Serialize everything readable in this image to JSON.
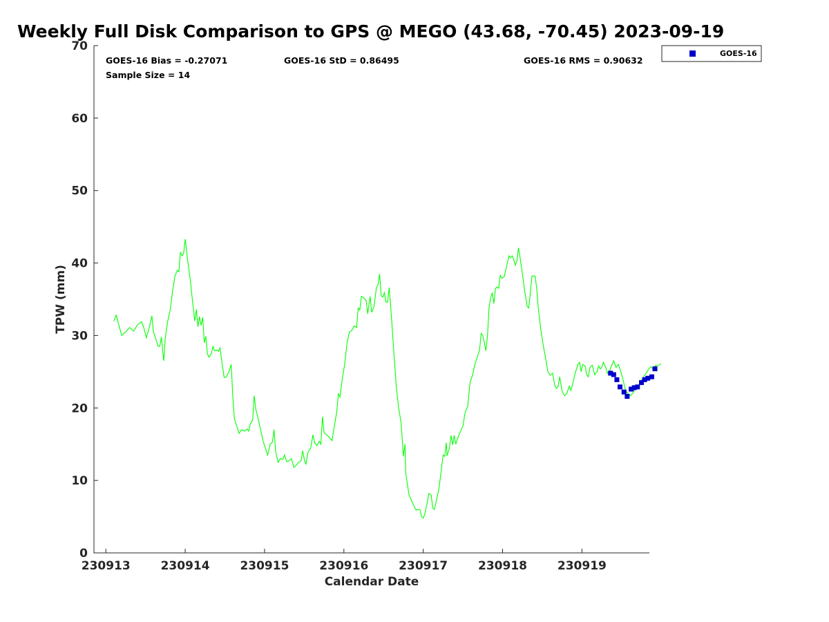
{
  "chart_data": {
    "type": "line",
    "title": "Weekly Full Disk Comparison to GPS @ MEGO (43.68, -70.45) 2023-09-19",
    "xlabel": "Calendar Date",
    "ylabel": "TPW (mm)",
    "xlim": [
      0,
      7.0
    ],
    "ylim": [
      0,
      70
    ],
    "x_tick_labels": [
      "230913",
      "230914",
      "230915",
      "230916",
      "230917",
      "230918",
      "230919"
    ],
    "y_ticks": [
      0,
      10,
      20,
      30,
      40,
      50,
      60,
      70
    ],
    "grid": false,
    "legend": {
      "placement": "top-right (outside plot)",
      "entries": [
        "GOES-16"
      ]
    },
    "stats": {
      "bias": "GOES-16 Bias = -0.27071",
      "std": "GOES-16 StD = 0.86495",
      "rms": "GOES-16 RMS = 0.90632",
      "sample_size": "Sample Size = 14"
    },
    "series": [
      {
        "color": "#00ff00",
        "style": "line",
        "points": [
          [
            0.1,
            32.0
          ],
          [
            0.13,
            32.8
          ],
          [
            0.16,
            31.6
          ],
          [
            0.2,
            30.0
          ],
          [
            0.25,
            30.5
          ],
          [
            0.3,
            31.1
          ],
          [
            0.35,
            30.6
          ],
          [
            0.4,
            31.5
          ],
          [
            0.45,
            31.9
          ],
          [
            0.48,
            31.0
          ],
          [
            0.51,
            29.7
          ],
          [
            0.55,
            31.2
          ],
          [
            0.58,
            32.7
          ],
          [
            0.6,
            30.5
          ],
          [
            0.63,
            29.5
          ],
          [
            0.66,
            28.5
          ],
          [
            0.68,
            28.5
          ],
          [
            0.7,
            29.8
          ],
          [
            0.72,
            27.5
          ],
          [
            0.73,
            26.5
          ],
          [
            0.75,
            29.8
          ],
          [
            0.78,
            32.0
          ],
          [
            0.81,
            33.5
          ],
          [
            0.84,
            36.0
          ],
          [
            0.87,
            38.2
          ],
          [
            0.9,
            39.0
          ],
          [
            0.92,
            38.8
          ],
          [
            0.94,
            41.5
          ],
          [
            0.96,
            41.0
          ],
          [
            0.98,
            41.3
          ],
          [
            1.0,
            43.3
          ],
          [
            1.03,
            40.5
          ],
          [
            1.06,
            38.0
          ],
          [
            1.09,
            35.0
          ],
          [
            1.12,
            32.0
          ],
          [
            1.14,
            33.6
          ],
          [
            1.16,
            31.2
          ],
          [
            1.18,
            32.6
          ],
          [
            1.2,
            31.4
          ],
          [
            1.22,
            32.5
          ],
          [
            1.24,
            29.0
          ],
          [
            1.26,
            29.9
          ],
          [
            1.28,
            27.5
          ],
          [
            1.3,
            27.0
          ],
          [
            1.33,
            27.5
          ],
          [
            1.35,
            28.5
          ],
          [
            1.37,
            27.9
          ],
          [
            1.4,
            28.0
          ],
          [
            1.42,
            27.8
          ],
          [
            1.44,
            28.3
          ],
          [
            1.46,
            26.5
          ],
          [
            1.49,
            24.2
          ],
          [
            1.52,
            24.3
          ],
          [
            1.55,
            25.0
          ],
          [
            1.58,
            26.0
          ],
          [
            1.6,
            21.5
          ],
          [
            1.62,
            18.5
          ],
          [
            1.65,
            17.5
          ],
          [
            1.68,
            16.5
          ],
          [
            1.71,
            17.0
          ],
          [
            1.75,
            16.8
          ],
          [
            1.78,
            17.1
          ],
          [
            1.8,
            16.8
          ],
          [
            1.82,
            17.8
          ],
          [
            1.85,
            18.3
          ],
          [
            1.87,
            21.7
          ],
          [
            1.89,
            19.8
          ],
          [
            1.92,
            18.5
          ],
          [
            1.95,
            17.0
          ],
          [
            1.98,
            15.5
          ],
          [
            2.01,
            14.5
          ],
          [
            2.04,
            13.5
          ],
          [
            2.07,
            15.0
          ],
          [
            2.1,
            15.3
          ],
          [
            2.12,
            17.0
          ],
          [
            2.14,
            14.0
          ],
          [
            2.17,
            12.5
          ],
          [
            2.2,
            13.0
          ],
          [
            2.23,
            12.9
          ],
          [
            2.25,
            13.5
          ],
          [
            2.28,
            12.6
          ],
          [
            2.31,
            12.7
          ],
          [
            2.34,
            13.0
          ],
          [
            2.37,
            11.8
          ],
          [
            2.4,
            12.1
          ],
          [
            2.43,
            12.5
          ],
          [
            2.46,
            12.7
          ],
          [
            2.48,
            14.1
          ],
          [
            2.5,
            12.9
          ],
          [
            2.52,
            12.2
          ],
          [
            2.55,
            14.0
          ],
          [
            2.58,
            14.4
          ],
          [
            2.61,
            16.3
          ],
          [
            2.63,
            15.2
          ],
          [
            2.66,
            14.8
          ],
          [
            2.69,
            15.4
          ],
          [
            2.71,
            15.0
          ],
          [
            2.73,
            18.8
          ],
          [
            2.75,
            16.6
          ],
          [
            2.78,
            16.3
          ],
          [
            2.81,
            16.0
          ],
          [
            2.85,
            15.5
          ],
          [
            2.88,
            17.5
          ],
          [
            2.91,
            19.5
          ],
          [
            2.93,
            22.0
          ],
          [
            2.95,
            21.5
          ],
          [
            2.98,
            24.0
          ],
          [
            3.01,
            26.0
          ],
          [
            3.04,
            29.0
          ],
          [
            3.07,
            30.5
          ],
          [
            3.1,
            30.7
          ],
          [
            3.13,
            31.3
          ],
          [
            3.16,
            31.1
          ],
          [
            3.18,
            33.8
          ],
          [
            3.2,
            33.5
          ],
          [
            3.22,
            35.4
          ],
          [
            3.25,
            35.2
          ],
          [
            3.28,
            34.8
          ],
          [
            3.3,
            33.0
          ],
          [
            3.33,
            35.4
          ],
          [
            3.35,
            33.2
          ],
          [
            3.38,
            34.0
          ],
          [
            3.41,
            36.6
          ],
          [
            3.43,
            37.0
          ],
          [
            3.45,
            38.5
          ],
          [
            3.47,
            35.5
          ],
          [
            3.49,
            35.3
          ],
          [
            3.51,
            35.9
          ],
          [
            3.53,
            34.6
          ],
          [
            3.55,
            34.6
          ],
          [
            3.57,
            36.6
          ],
          [
            3.6,
            32.5
          ],
          [
            3.63,
            27.5
          ],
          [
            3.66,
            23.0
          ],
          [
            3.69,
            20.0
          ],
          [
            3.72,
            18.0
          ],
          [
            3.74,
            15.0
          ],
          [
            3.75,
            13.3
          ],
          [
            3.77,
            15.0
          ],
          [
            3.78,
            11.0
          ],
          [
            3.8,
            9.5
          ],
          [
            3.82,
            8.0
          ],
          [
            3.85,
            7.3
          ],
          [
            3.88,
            6.5
          ],
          [
            3.91,
            5.9
          ],
          [
            3.94,
            6.0
          ],
          [
            3.96,
            5.9
          ],
          [
            3.98,
            5.0
          ],
          [
            4.0,
            4.8
          ],
          [
            4.02,
            5.4
          ],
          [
            4.05,
            6.9
          ],
          [
            4.07,
            8.2
          ],
          [
            4.1,
            8.0
          ],
          [
            4.12,
            6.2
          ],
          [
            4.14,
            6.0
          ],
          [
            4.17,
            7.4
          ],
          [
            4.2,
            9.0
          ],
          [
            4.23,
            11.7
          ],
          [
            4.25,
            13.5
          ],
          [
            4.27,
            13.3
          ],
          [
            4.29,
            15.2
          ],
          [
            4.3,
            13.4
          ],
          [
            4.33,
            14.5
          ],
          [
            4.35,
            16.2
          ],
          [
            4.37,
            14.9
          ],
          [
            4.39,
            16.2
          ],
          [
            4.41,
            15.0
          ],
          [
            4.44,
            16.0
          ],
          [
            4.47,
            16.8
          ],
          [
            4.5,
            17.5
          ],
          [
            4.53,
            19.5
          ],
          [
            4.56,
            20.2
          ],
          [
            4.59,
            23.5
          ],
          [
            4.62,
            24.5
          ],
          [
            4.65,
            26.0
          ],
          [
            4.68,
            27.0
          ],
          [
            4.71,
            28.0
          ],
          [
            4.73,
            30.3
          ],
          [
            4.75,
            30.0
          ],
          [
            4.77,
            29.0
          ],
          [
            4.79,
            27.9
          ],
          [
            4.81,
            30.0
          ],
          [
            4.83,
            34.0
          ],
          [
            4.85,
            35.2
          ],
          [
            4.87,
            35.9
          ],
          [
            4.89,
            34.4
          ],
          [
            4.91,
            36.5
          ],
          [
            4.93,
            36.7
          ],
          [
            4.95,
            36.5
          ],
          [
            4.97,
            38.3
          ],
          [
            4.99,
            37.9
          ],
          [
            5.02,
            38.1
          ],
          [
            5.05,
            39.5
          ],
          [
            5.08,
            41.0
          ],
          [
            5.1,
            40.7
          ],
          [
            5.12,
            41.0
          ],
          [
            5.14,
            40.5
          ],
          [
            5.16,
            39.7
          ],
          [
            5.18,
            40.3
          ],
          [
            5.2,
            42.1
          ],
          [
            5.22,
            40.8
          ],
          [
            5.25,
            38.5
          ],
          [
            5.28,
            36.0
          ],
          [
            5.31,
            34.0
          ],
          [
            5.33,
            33.8
          ],
          [
            5.35,
            35.9
          ],
          [
            5.37,
            38.2
          ],
          [
            5.39,
            38.2
          ],
          [
            5.41,
            38.2
          ],
          [
            5.43,
            36.5
          ],
          [
            5.45,
            33.8
          ],
          [
            5.48,
            31.0
          ],
          [
            5.51,
            28.8
          ],
          [
            5.54,
            27.0
          ],
          [
            5.57,
            25.0
          ],
          [
            5.6,
            24.5
          ],
          [
            5.63,
            24.8
          ],
          [
            5.66,
            23.0
          ],
          [
            5.68,
            22.7
          ],
          [
            5.7,
            23.0
          ],
          [
            5.72,
            24.3
          ],
          [
            5.75,
            22.3
          ],
          [
            5.78,
            21.7
          ],
          [
            5.81,
            22.0
          ],
          [
            5.84,
            23.0
          ],
          [
            5.86,
            22.4
          ],
          [
            5.88,
            23.2
          ],
          [
            5.9,
            24.1
          ],
          [
            5.92,
            25.0
          ],
          [
            5.95,
            26.0
          ],
          [
            5.97,
            26.3
          ],
          [
            5.99,
            25.0
          ],
          [
            6.01,
            26.0
          ],
          [
            6.04,
            25.8
          ],
          [
            6.06,
            24.6
          ],
          [
            6.08,
            24.3
          ],
          [
            6.1,
            25.6
          ],
          [
            6.13,
            25.9
          ],
          [
            6.16,
            24.6
          ],
          [
            6.19,
            25.0
          ],
          [
            6.21,
            25.8
          ],
          [
            6.23,
            25.4
          ],
          [
            6.25,
            25.6
          ],
          [
            6.27,
            26.3
          ],
          [
            6.3,
            25.6
          ],
          [
            6.32,
            24.8
          ],
          [
            6.35,
            25.2
          ],
          [
            6.38,
            26.0
          ],
          [
            6.4,
            26.5
          ],
          [
            6.43,
            25.6
          ],
          [
            6.46,
            26.0
          ],
          [
            6.49,
            25.0
          ],
          [
            6.52,
            23.8
          ],
          [
            6.55,
            22.4
          ],
          [
            6.58,
            22.0
          ],
          [
            6.61,
            21.7
          ],
          [
            6.64,
            22.0
          ],
          [
            6.67,
            22.6
          ],
          [
            6.7,
            22.9
          ],
          [
            6.73,
            23.4
          ],
          [
            6.76,
            24.0
          ],
          [
            6.79,
            24.5
          ],
          [
            6.82,
            25.0
          ],
          [
            6.85,
            25.5
          ],
          [
            6.87,
            25.7
          ],
          [
            6.9,
            25.3
          ],
          [
            6.93,
            25.9
          ],
          [
            6.96,
            25.8
          ],
          [
            6.98,
            26.0
          ],
          [
            7.0,
            26.1
          ]
        ]
      },
      {
        "name": "GOES-16",
        "color": "#0000cc",
        "style": "markers",
        "points": [
          [
            6.36,
            24.8
          ],
          [
            6.4,
            24.6
          ],
          [
            6.44,
            23.9
          ],
          [
            6.48,
            22.9
          ],
          [
            6.53,
            22.2
          ],
          [
            6.57,
            21.6
          ],
          [
            6.62,
            22.6
          ],
          [
            6.66,
            22.8
          ],
          [
            6.7,
            22.9
          ],
          [
            6.75,
            23.5
          ],
          [
            6.79,
            23.9
          ],
          [
            6.83,
            24.1
          ],
          [
            6.88,
            24.3
          ],
          [
            6.92,
            25.4
          ]
        ]
      }
    ]
  }
}
